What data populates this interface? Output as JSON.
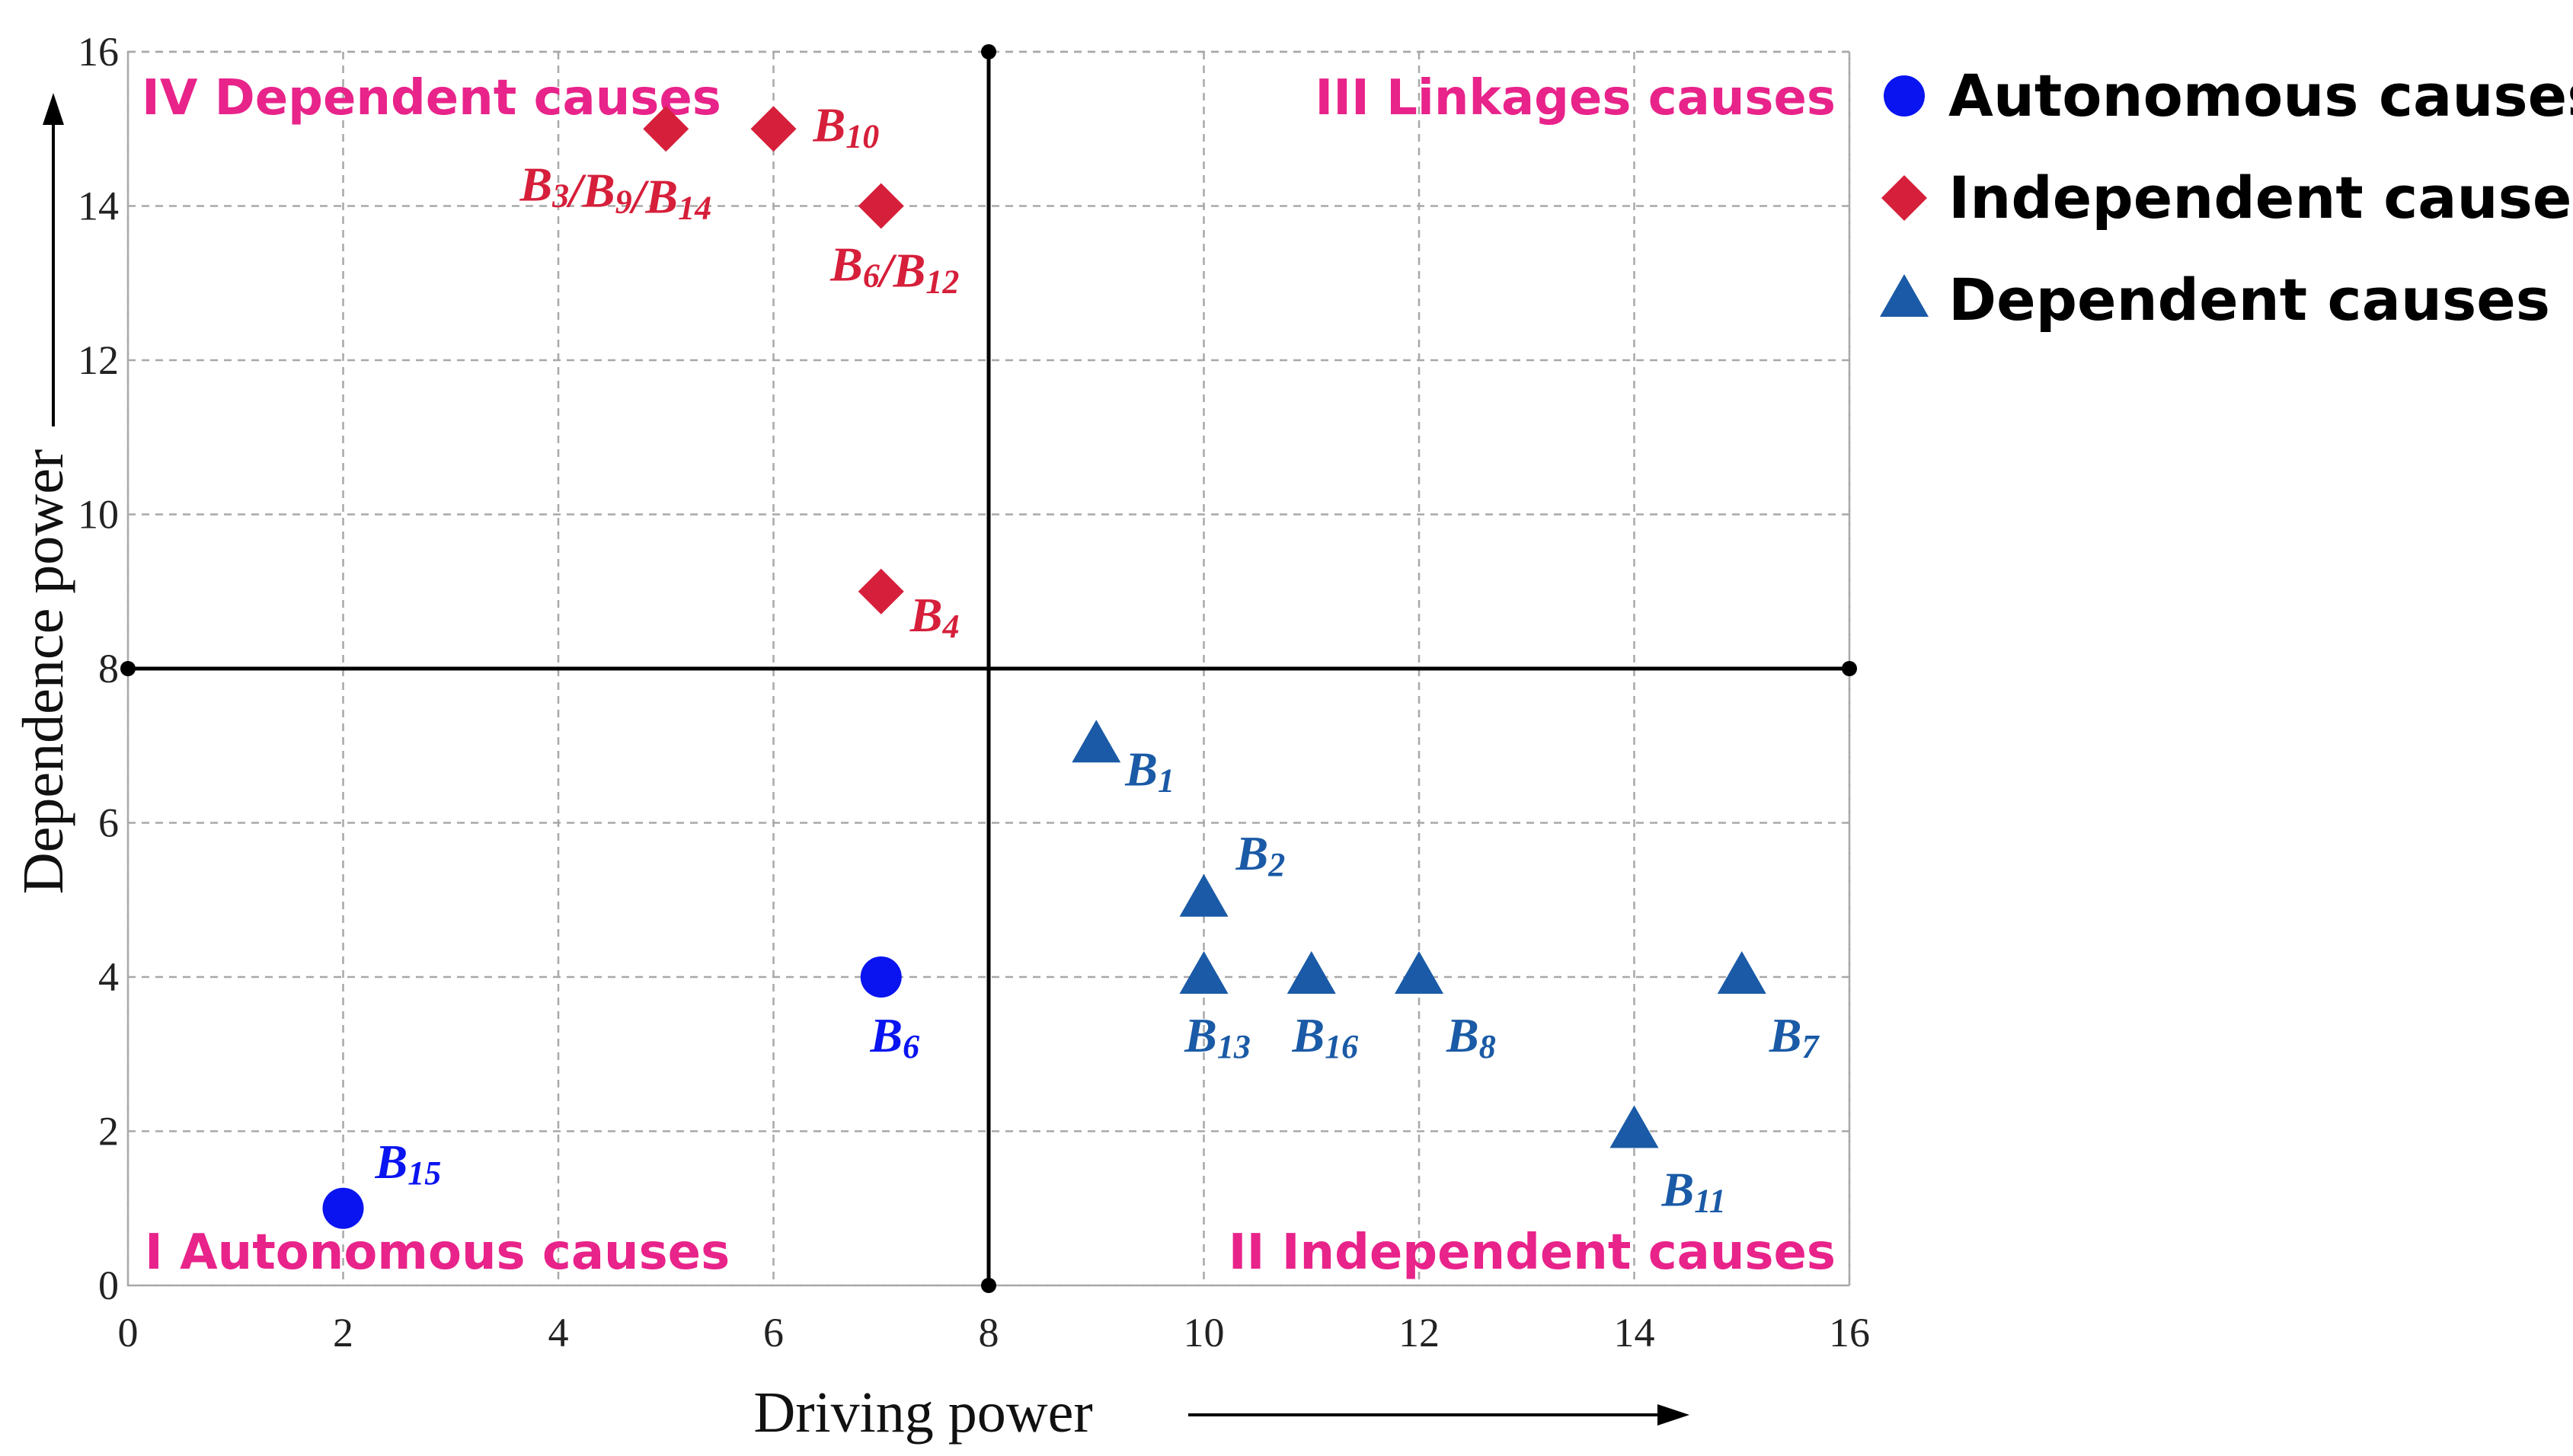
{
  "chart_data": {
    "type": "scatter",
    "xlabel": "Driving power",
    "ylabel": "Dependence power",
    "xlim": [
      0,
      16
    ],
    "ylim": [
      0,
      16
    ],
    "xticks": [
      "0",
      "2",
      "4",
      "6",
      "8",
      "10",
      "12",
      "14",
      "16"
    ],
    "yticks": [
      "0",
      "2",
      "4",
      "6",
      "8",
      "10",
      "12",
      "14",
      "16"
    ],
    "grid": true,
    "divider": {
      "x": 8,
      "y": 8
    },
    "quadrants": [
      {
        "id": "q4",
        "text": "IV Dependent causes",
        "position": "top-left"
      },
      {
        "id": "q3",
        "text": "III Linkages causes",
        "position": "top-right"
      },
      {
        "id": "q1",
        "text": "I Autonomous causes",
        "position": "bottom-left"
      },
      {
        "id": "q2",
        "text": "II Independent causes",
        "position": "bottom-right"
      }
    ],
    "legend": {
      "position": "outside-right",
      "items": [
        {
          "series": "autonomous",
          "label": "Autonomous causes"
        },
        {
          "series": "independent",
          "label": "Independent causes"
        },
        {
          "series": "dependent",
          "label": "Dependent causes"
        }
      ]
    },
    "series": [
      {
        "id": "autonomous",
        "name": "Autonomous causes",
        "marker": "circle",
        "color": "#0a14f0",
        "points": [
          {
            "x": 2,
            "y": 1,
            "label": "B",
            "sub": "15",
            "anchor": "upper-right"
          },
          {
            "x": 7,
            "y": 4,
            "label": "B",
            "sub": "6",
            "anchor": "below"
          }
        ]
      },
      {
        "id": "independent",
        "name": "Independent causes",
        "marker": "diamond",
        "color": "#d61f3a",
        "points": [
          {
            "x": 5,
            "y": 15,
            "label": "B3/B9/B14",
            "parts": [
              [
                "B",
                "3"
              ],
              [
                "/B",
                "9"
              ],
              [
                "/B",
                "14"
              ]
            ],
            "anchor": "below-left"
          },
          {
            "x": 6,
            "y": 15,
            "label": "B",
            "sub": "10",
            "anchor": "right"
          },
          {
            "x": 7,
            "y": 14,
            "label": "B6/B12",
            "parts": [
              [
                "B",
                "6"
              ],
              [
                "/B",
                "12"
              ]
            ],
            "anchor": "below"
          },
          {
            "x": 7,
            "y": 9,
            "label": "B",
            "sub": "4",
            "anchor": "lower-right"
          }
        ]
      },
      {
        "id": "dependent",
        "name": "Dependent causes",
        "marker": "triangle",
        "color": "#1a5aa6",
        "points": [
          {
            "x": 9,
            "y": 7,
            "label": "B",
            "sub": "1",
            "anchor": "lower-right"
          },
          {
            "x": 10,
            "y": 5,
            "label": "B",
            "sub": "2",
            "anchor": "upper-right"
          },
          {
            "x": 10,
            "y": 4,
            "label": "B",
            "sub": "13",
            "anchor": "below"
          },
          {
            "x": 11,
            "y": 4,
            "label": "B",
            "sub": "16",
            "anchor": "below"
          },
          {
            "x": 12,
            "y": 4,
            "label": "B",
            "sub": "8",
            "anchor": "below-right"
          },
          {
            "x": 15,
            "y": 4,
            "label": "B",
            "sub": "7",
            "anchor": "below-right"
          },
          {
            "x": 14,
            "y": 2,
            "label": "B",
            "sub": "11",
            "anchor": "below-right"
          }
        ]
      }
    ]
  },
  "colors": {
    "quadrant_text": "#e8238a",
    "axis": "#000000",
    "grid": "#a8a8a8"
  }
}
